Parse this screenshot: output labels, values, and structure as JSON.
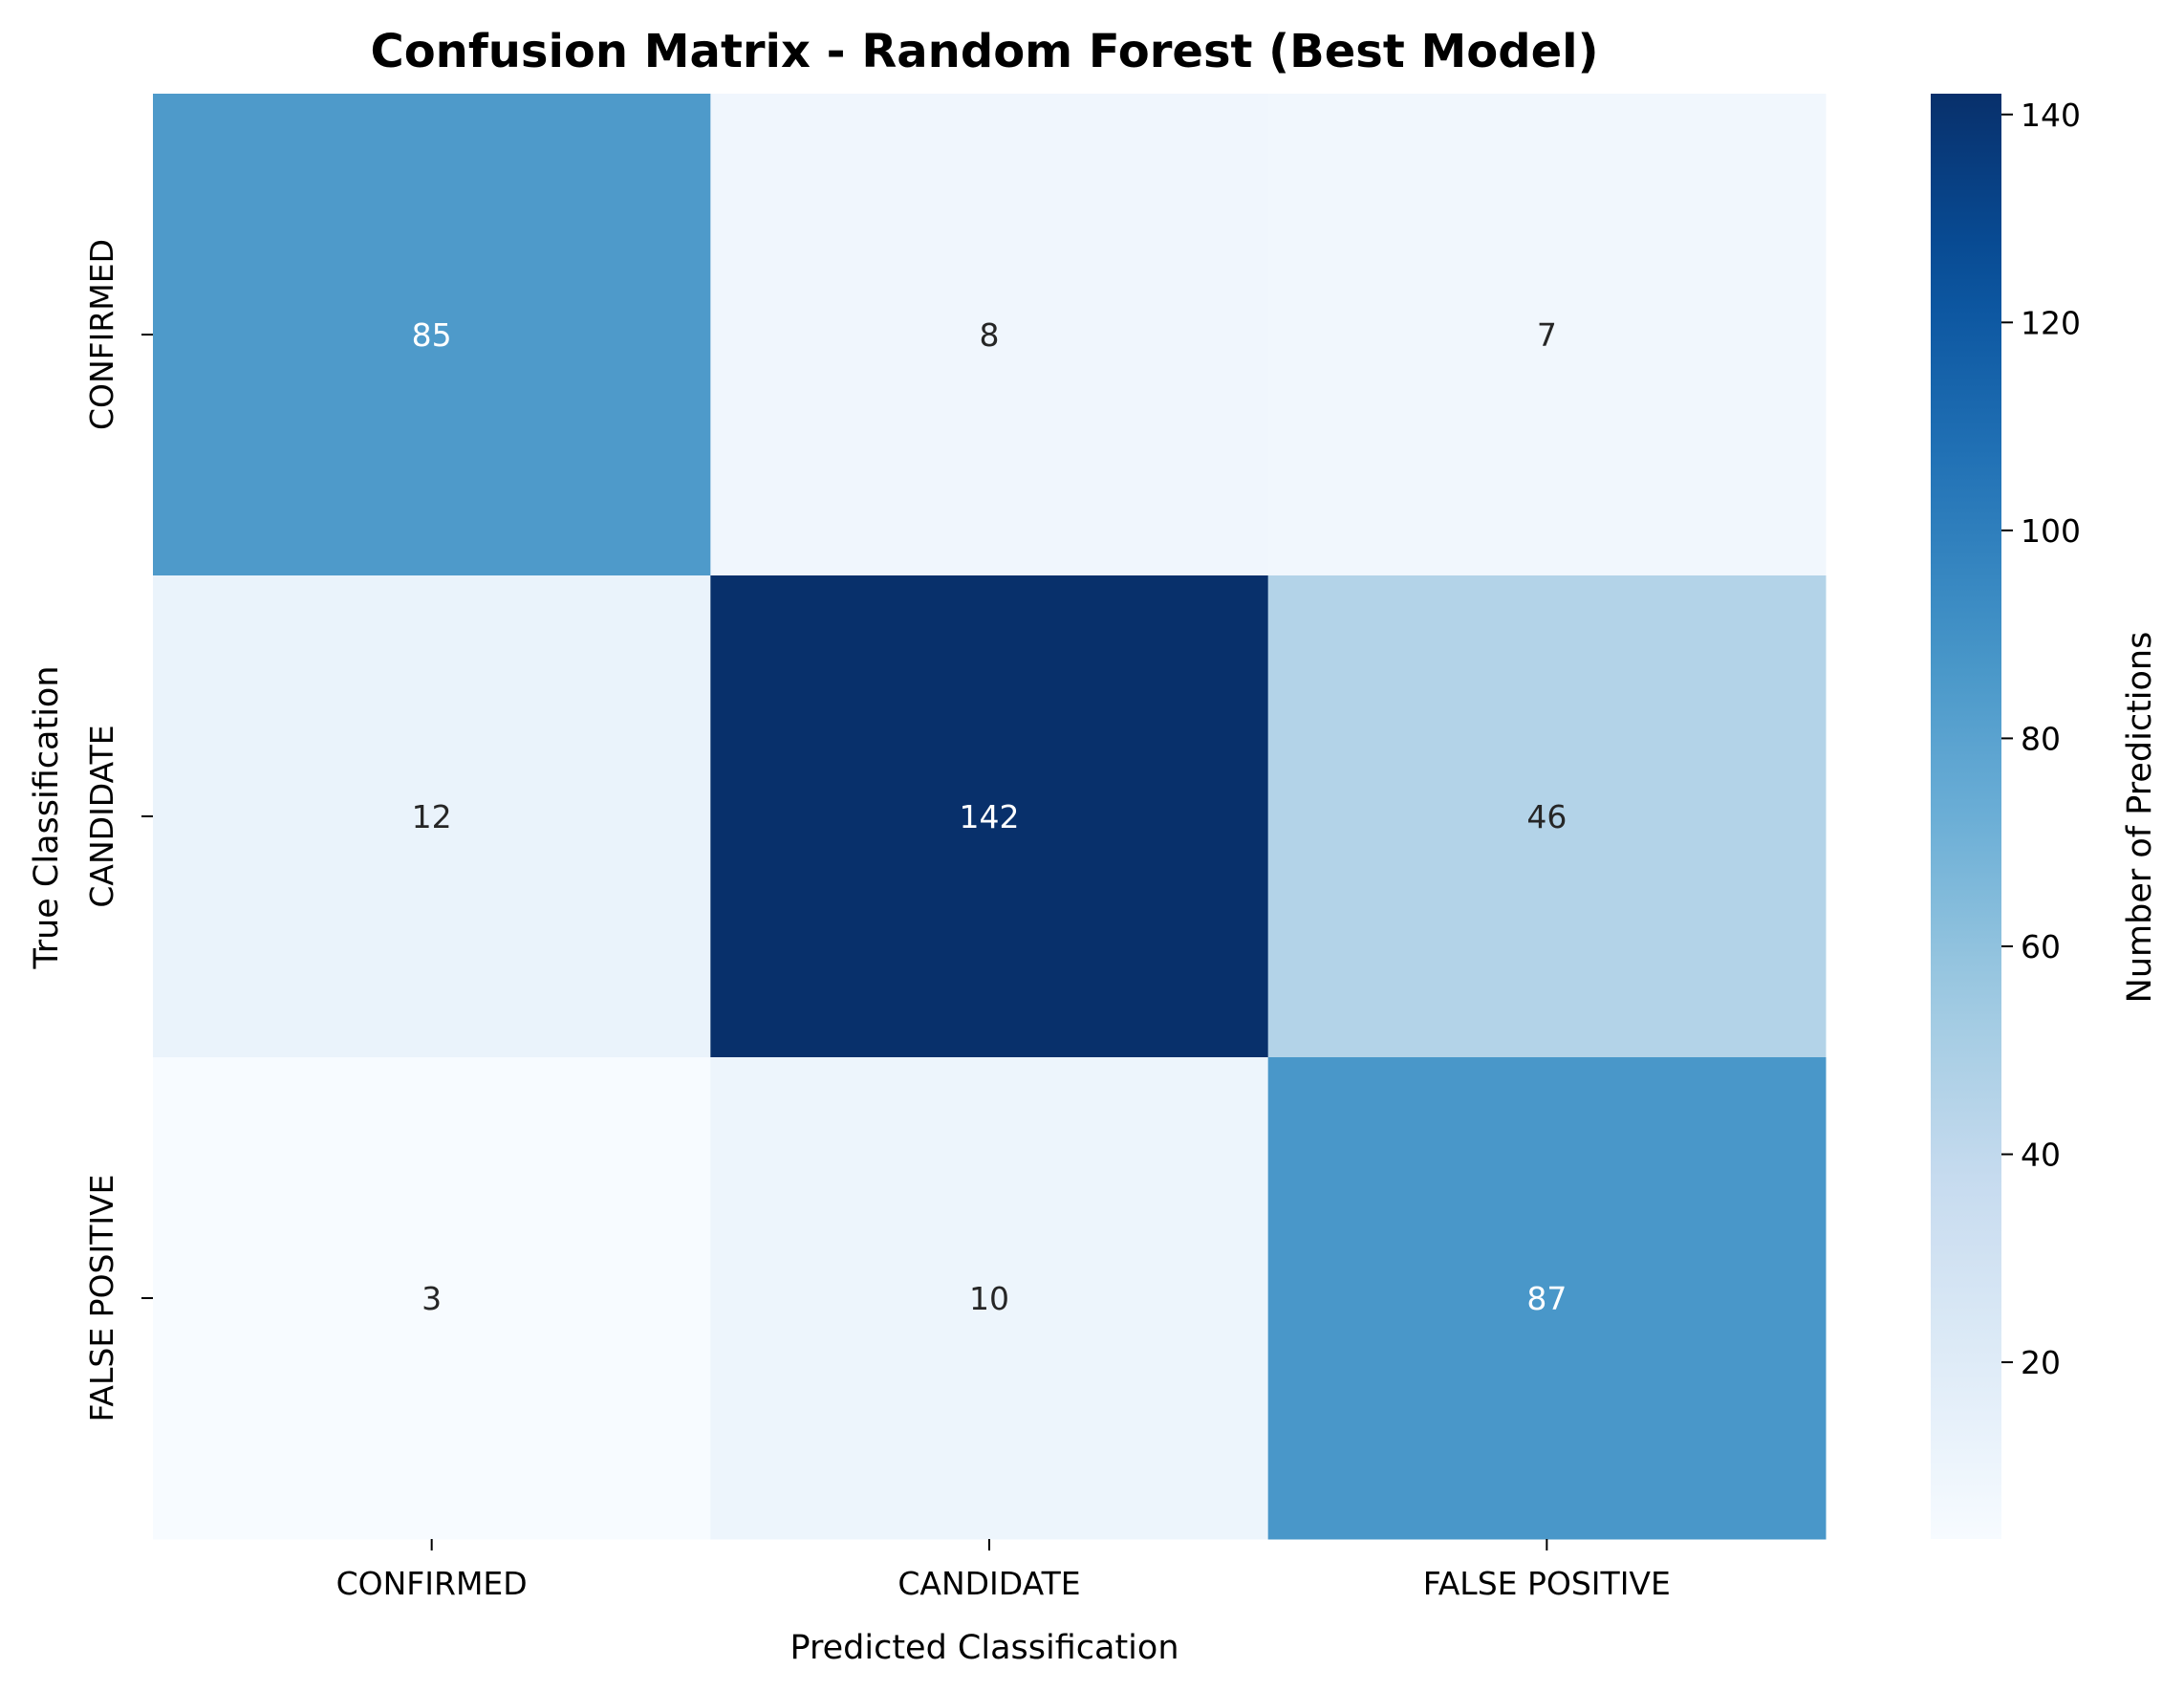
{
  "chart_data": {
    "type": "heatmap",
    "title": "Confusion Matrix - Random Forest (Best Model)",
    "xlabel": "Predicted Classification",
    "ylabel": "True Classification",
    "x_categories": [
      "CONFIRMED",
      "CANDIDATE",
      "FALSE POSITIVE"
    ],
    "y_categories": [
      "CONFIRMED",
      "CANDIDATE",
      "FALSE POSITIVE"
    ],
    "values": [
      [
        85,
        8,
        7
      ],
      [
        12,
        142,
        46
      ],
      [
        3,
        10,
        87
      ]
    ],
    "colorbar": {
      "label": "Number of Predictions",
      "range": [
        3,
        142
      ],
      "ticks": [
        20,
        40,
        60,
        80,
        100,
        120,
        140
      ],
      "colormap": "Blues"
    }
  }
}
